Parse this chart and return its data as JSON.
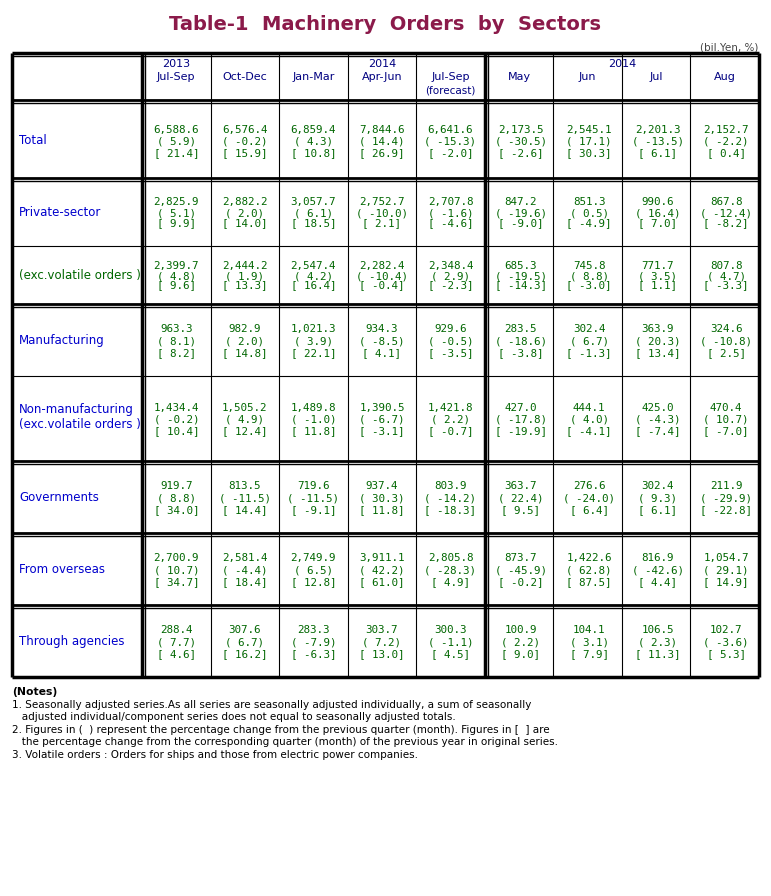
{
  "title": "Table-1  Machinery  Orders  by  Sectors",
  "title_color": "#8B1A4A",
  "unit_label": "(bil.Yen, %)",
  "col_headers_year_row": {
    "2013_cols": [
      0
    ],
    "2014_quarterly_cols": [
      2,
      3,
      4
    ],
    "2014_monthly_cols": [
      5,
      6,
      7,
      8
    ]
  },
  "period_labels": [
    "Jul-Sep",
    "Oct-Dec",
    "Jan-Mar",
    "Apr-Jun",
    "Jul-Sep",
    "May",
    "Jun",
    "Jul",
    "Aug"
  ],
  "forecast_col": 4,
  "rows": [
    {
      "label": "Total",
      "label_color": "#0000CC",
      "two_line_label": false,
      "thick_top": true,
      "data": [
        [
          "6,588.6",
          "( 5.9)",
          "[ 21.4]"
        ],
        [
          "6,576.4",
          "( -0.2)",
          "[ 15.9]"
        ],
        [
          "6,859.4",
          "( 4.3)",
          "[ 10.8]"
        ],
        [
          "7,844.6",
          "( 14.4)",
          "[ 26.9]"
        ],
        [
          "6,641.6",
          "( -15.3)",
          "[ -2.0]"
        ],
        [
          "2,173.5",
          "( -30.5)",
          "[ -2.6]"
        ],
        [
          "2,545.1",
          "( 17.1)",
          "[ 30.3]"
        ],
        [
          "2,201.3",
          "( -13.5)",
          "[ 6.1]"
        ],
        [
          "2,152.7",
          "( -2.2)",
          "[ 0.4]"
        ]
      ]
    },
    {
      "label": "Private-sector",
      "label_color": "#0000CC",
      "two_line_label": false,
      "thick_top": true,
      "data": [
        [
          "2,825.9",
          "( 5.1)",
          "[ 9.9]"
        ],
        [
          "2,882.2",
          "( 2.0)",
          "[ 14.0]"
        ],
        [
          "3,057.7",
          "( 6.1)",
          "[ 18.5]"
        ],
        [
          "2,752.7",
          "( -10.0)",
          "[ 2.1]"
        ],
        [
          "2,707.8",
          "( -1.6)",
          "[ -4.6]"
        ],
        [
          "847.2",
          "( -19.6)",
          "[ -9.0]"
        ],
        [
          "851.3",
          "( 0.5)",
          "[ -4.9]"
        ],
        [
          "990.6",
          "( 16.4)",
          "[ 7.0]"
        ],
        [
          "867.8",
          "( -12.4)",
          "[ -8.2]"
        ]
      ]
    },
    {
      "label": "(exc.volatile orders )",
      "label_color": "#006600",
      "two_line_label": false,
      "thick_top": false,
      "data": [
        [
          "2,399.7",
          "( 4.8)",
          "[ 9.6]"
        ],
        [
          "2,444.2",
          "( 1.9)",
          "[ 13.3]"
        ],
        [
          "2,547.4",
          "( 4.2)",
          "[ 16.4]"
        ],
        [
          "2,282.4",
          "( -10.4)",
          "[ -0.4]"
        ],
        [
          "2,348.4",
          "( 2.9)",
          "[ -2.3]"
        ],
        [
          "685.3",
          "( -19.5)",
          "[ -14.3]"
        ],
        [
          "745.8",
          "( 8.8)",
          "[ -3.0]"
        ],
        [
          "771.7",
          "( 3.5)",
          "[ 1.1]"
        ],
        [
          "807.8",
          "( 4.7)",
          "[ -3.3]"
        ]
      ]
    },
    {
      "label": "Manufacturing",
      "label_color": "#0000CC",
      "two_line_label": false,
      "thick_top": true,
      "data": [
        [
          "963.3",
          "( 8.1)",
          "[ 8.2]"
        ],
        [
          "982.9",
          "( 2.0)",
          "[ 14.8]"
        ],
        [
          "1,021.3",
          "( 3.9)",
          "[ 22.1]"
        ],
        [
          "934.3",
          "( -8.5)",
          "[ 4.1]"
        ],
        [
          "929.6",
          "( -0.5)",
          "[ -3.5]"
        ],
        [
          "283.5",
          "( -18.6)",
          "[ -3.8]"
        ],
        [
          "302.4",
          "( 6.7)",
          "[ -1.3]"
        ],
        [
          "363.9",
          "( 20.3)",
          "[ 13.4]"
        ],
        [
          "324.6",
          "( -10.8)",
          "[ 2.5]"
        ]
      ]
    },
    {
      "label": "Non-manufacturing\n(exc.volatile orders )",
      "label_color": "#0000CC",
      "two_line_label": true,
      "thick_top": false,
      "data": [
        [
          "1,434.4",
          "( -0.2)",
          "[ 10.4]"
        ],
        [
          "1,505.2",
          "( 4.9)",
          "[ 12.4]"
        ],
        [
          "1,489.8",
          "( -1.0)",
          "[ 11.8]"
        ],
        [
          "1,390.5",
          "( -6.7)",
          "[ -3.1]"
        ],
        [
          "1,421.8",
          "( 2.2)",
          "[ -0.7]"
        ],
        [
          "427.0",
          "( -17.8)",
          "[ -19.9]"
        ],
        [
          "444.1",
          "( 4.0)",
          "[ -4.1]"
        ],
        [
          "425.0",
          "( -4.3)",
          "[ -7.4]"
        ],
        [
          "470.4",
          "( 10.7)",
          "[ -7.0]"
        ]
      ]
    },
    {
      "label": "Governments",
      "label_color": "#0000CC",
      "two_line_label": false,
      "thick_top": true,
      "data": [
        [
          "919.7",
          "( 8.8)",
          "[ 34.0]"
        ],
        [
          "813.5",
          "( -11.5)",
          "[ 14.4]"
        ],
        [
          "719.6",
          "( -11.5)",
          "[ -9.1]"
        ],
        [
          "937.4",
          "( 30.3)",
          "[ 11.8]"
        ],
        [
          "803.9",
          "( -14.2)",
          "[ -18.3]"
        ],
        [
          "363.7",
          "( 22.4)",
          "[ 9.5]"
        ],
        [
          "276.6",
          "( -24.0)",
          "[ 6.4]"
        ],
        [
          "302.4",
          "( 9.3)",
          "[ 6.1]"
        ],
        [
          "211.9",
          "( -29.9)",
          "[ -22.8]"
        ]
      ]
    },
    {
      "label": "From overseas",
      "label_color": "#0000CC",
      "two_line_label": false,
      "thick_top": true,
      "data": [
        [
          "2,700.9",
          "( 10.7)",
          "[ 34.7]"
        ],
        [
          "2,581.4",
          "( -4.4)",
          "[ 18.4]"
        ],
        [
          "2,749.9",
          "( 6.5)",
          "[ 12.8]"
        ],
        [
          "3,911.1",
          "( 42.2)",
          "[ 61.0]"
        ],
        [
          "2,805.8",
          "( -28.3)",
          "[ 4.9]"
        ],
        [
          "873.7",
          "( -45.9)",
          "[ -0.2]"
        ],
        [
          "1,422.6",
          "( 62.8)",
          "[ 87.5]"
        ],
        [
          "816.9",
          "( -42.6)",
          "[ 4.4]"
        ],
        [
          "1,054.7",
          "( 29.1)",
          "[ 14.9]"
        ]
      ]
    },
    {
      "label": "Through agencies",
      "label_color": "#0000CC",
      "two_line_label": false,
      "thick_top": true,
      "data": [
        [
          "288.4",
          "( 7.7)",
          "[ 4.6]"
        ],
        [
          "307.6",
          "( 6.7)",
          "[ 16.2]"
        ],
        [
          "283.3",
          "( -7.9)",
          "[ -6.3]"
        ],
        [
          "303.7",
          "( 7.2)",
          "[ 13.0]"
        ],
        [
          "300.3",
          "( -1.1)",
          "[ 4.5]"
        ],
        [
          "100.9",
          "( 2.2)",
          "[ 9.0]"
        ],
        [
          "104.1",
          "( 3.1)",
          "[ 7.9]"
        ],
        [
          "106.5",
          "( 2.3)",
          "[ 11.3]"
        ],
        [
          "102.7",
          "( -3.6)",
          "[ 5.3]"
        ]
      ]
    }
  ],
  "notes": [
    "(Notes)",
    "1. Seasonally adjusted series.As all series are seasonally adjusted individually, a sum of seasonally",
    "   adjusted individual/component series does not equal to seasonally adjusted totals.",
    "2. Figures in (  ) represent the percentage change from the previous quarter (month). Figures in [  ] are",
    "   the percentage change from the corresponding quarter (month) of the previous year in original series.",
    "3. Volatile orders : Orders for ships and those from electric power companies."
  ],
  "data_color": "#006600",
  "header_color": "#000080",
  "border_color": "#000000",
  "bg_color": "#ffffff"
}
